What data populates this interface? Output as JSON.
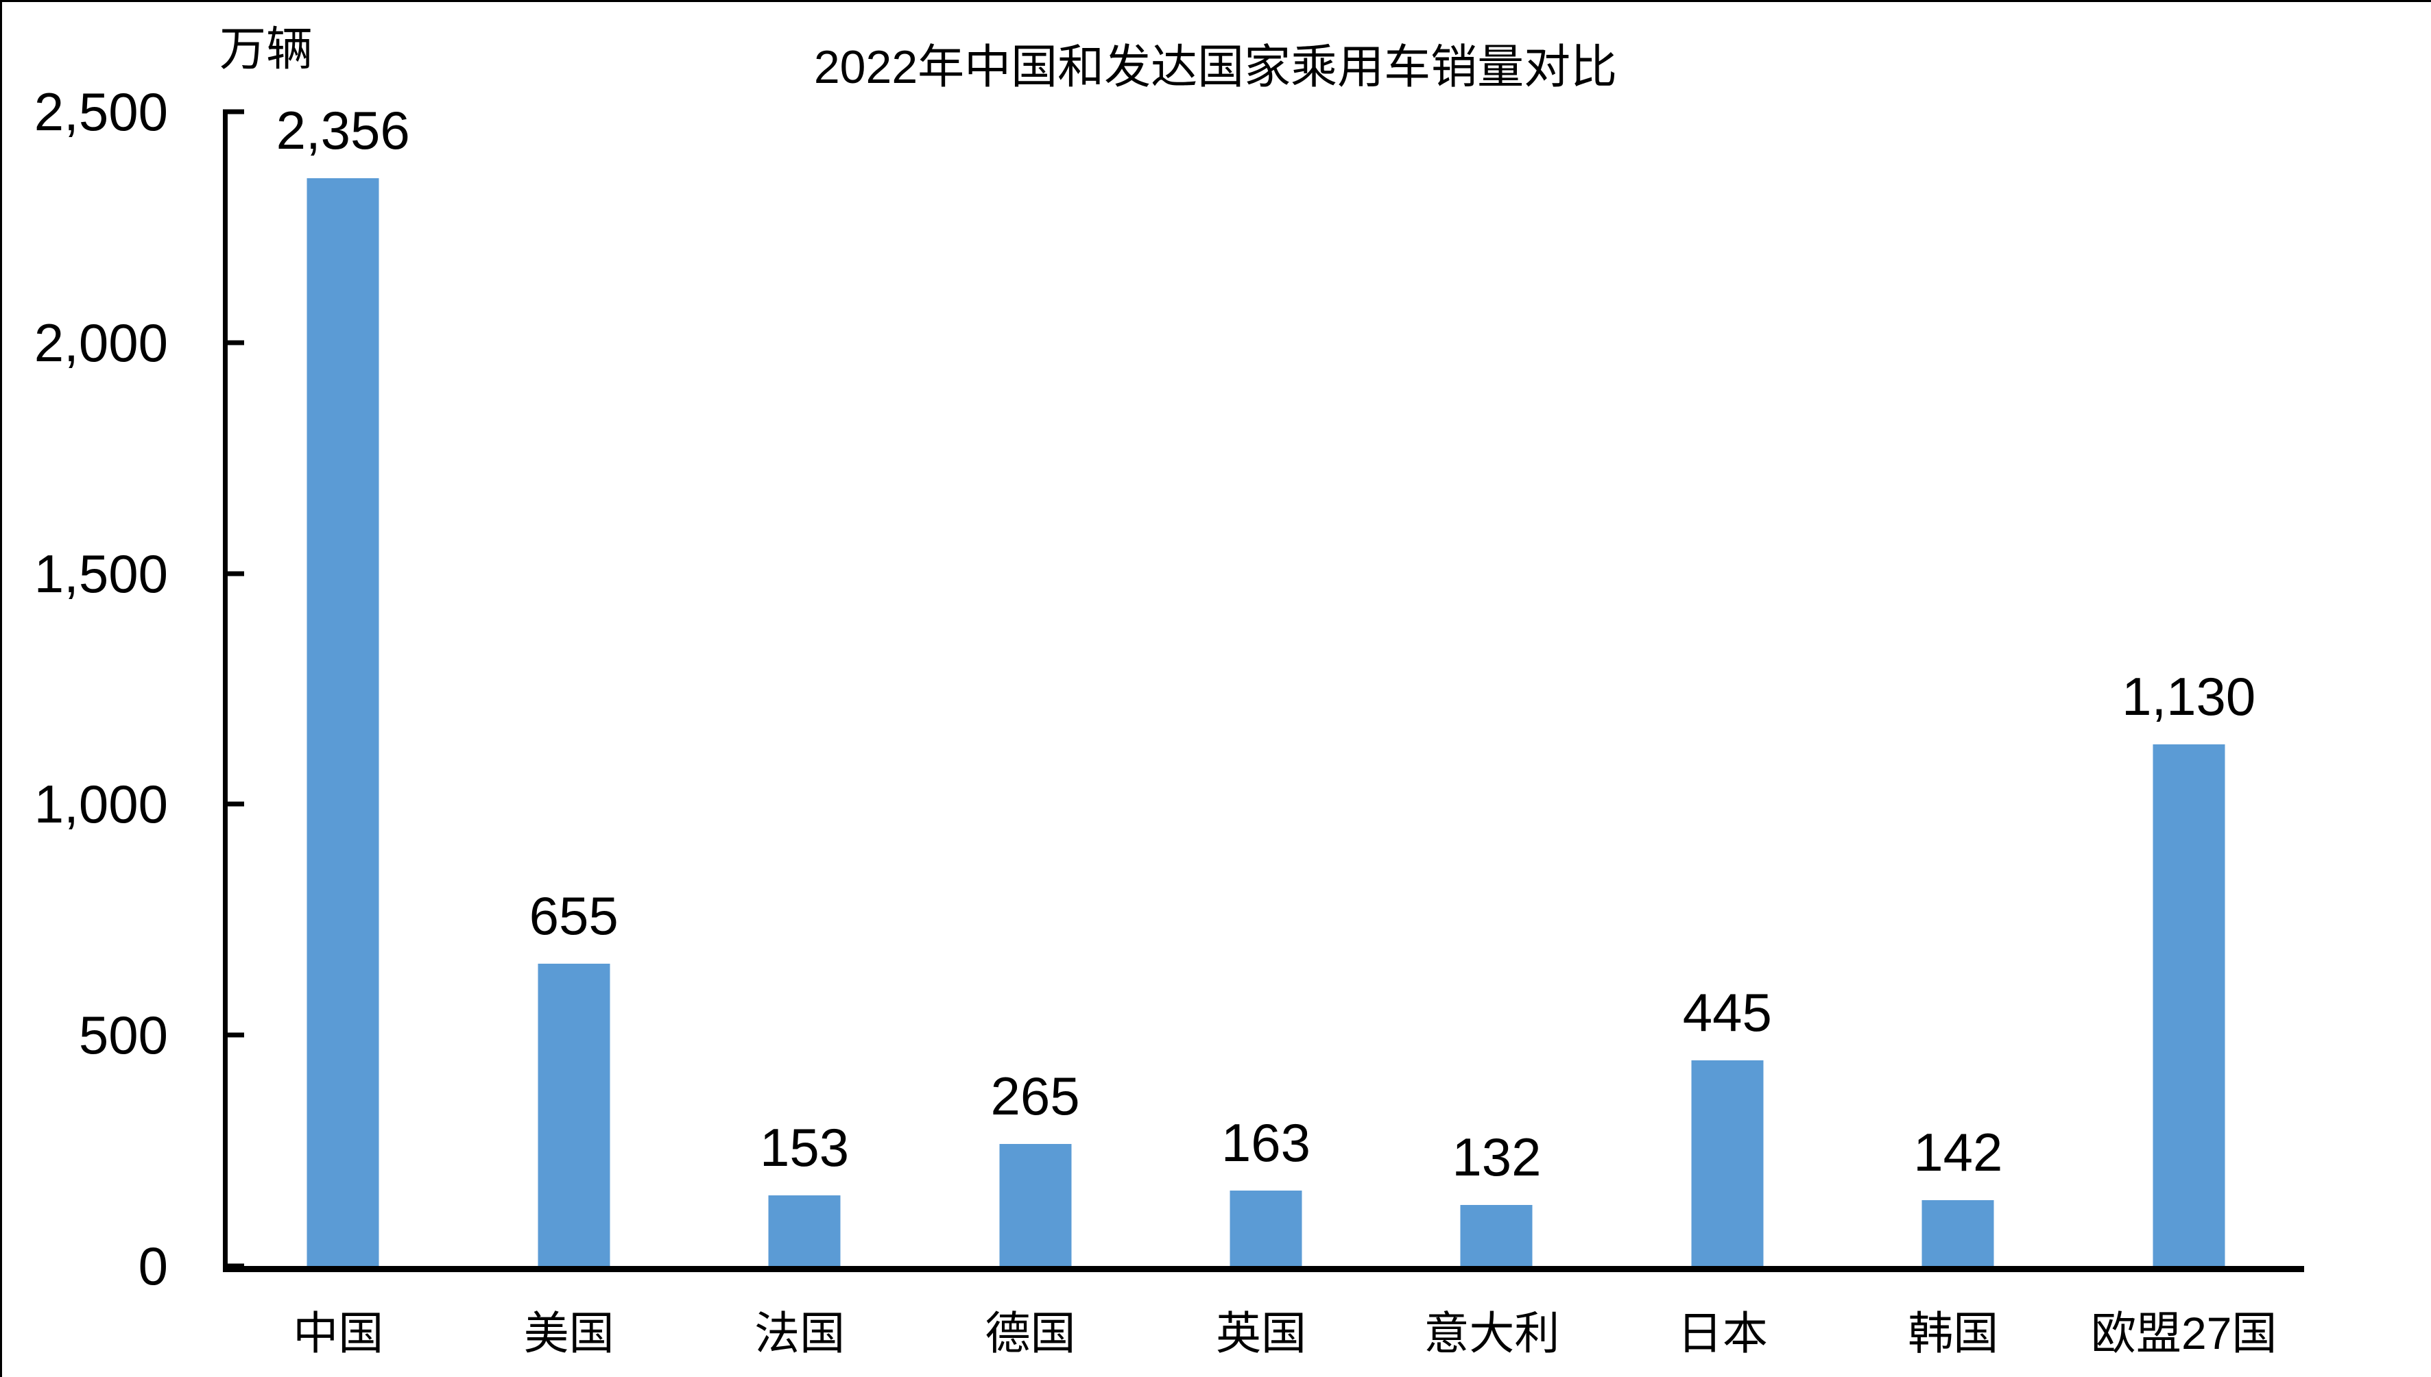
{
  "chart_data": {
    "type": "bar",
    "title": "2022年中国和发达国家乘用车销量对比",
    "unit_label": "万辆",
    "categories": [
      "中国",
      "美国",
      "法国",
      "德国",
      "英国",
      "意大利",
      "日本",
      "韩国",
      "欧盟27国"
    ],
    "values": [
      2356,
      655,
      153,
      265,
      163,
      132,
      445,
      142,
      1130
    ],
    "value_labels": [
      "2,356",
      "655",
      "153",
      "265",
      "163",
      "132",
      "445",
      "142",
      "1,130"
    ],
    "xlabel": "",
    "ylabel": "万辆",
    "ylim": [
      0,
      2500
    ],
    "ytick_interval": 500,
    "ytick_labels": [
      "0",
      "500",
      "1,000",
      "1,500",
      "2,000",
      "2,500"
    ],
    "grid": "off",
    "legend": "none",
    "bar_color": "#5B9BD5",
    "axis_color": "#000000",
    "text_color": "#000000"
  }
}
